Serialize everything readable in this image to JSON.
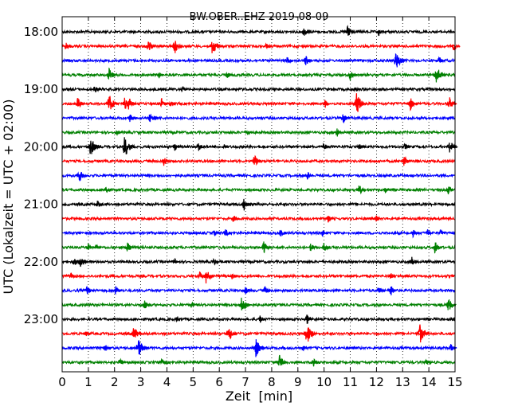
{
  "chart_data": {
    "type": "line",
    "title": "BW.OBER..EHZ 2019-08-09",
    "xlabel": "Zeit  [min]",
    "ylabel": "UTC (Lokalzeit = UTC + 02:00)",
    "xlim": [
      0,
      15
    ],
    "x_ticks": [
      "0",
      "1",
      "2",
      "3",
      "4",
      "5",
      "6",
      "7",
      "8",
      "9",
      "10",
      "11",
      "12",
      "13",
      "14",
      "15"
    ],
    "y_ticks": [
      "18:00",
      "19:00",
      "20:00",
      "21:00",
      "22:00",
      "23:00"
    ],
    "grid": "vertical dotted",
    "series_colors": [
      "#000000",
      "#ff0000",
      "#0000ff",
      "#008000"
    ],
    "traces": [
      {
        "start": "18:00",
        "color": "#000000",
        "events": [
          [
            9.25,
            0.6
          ],
          [
            10.9,
            0.6
          ],
          [
            12.1,
            0.4
          ]
        ]
      },
      {
        "start": "18:15",
        "color": "#ff0000",
        "events": [
          [
            0.15,
            0.4
          ],
          [
            3.3,
            0.6
          ],
          [
            4.3,
            0.7
          ],
          [
            5.75,
            0.9
          ],
          [
            7.8,
            0.3
          ],
          [
            14.95,
            0.5
          ]
        ]
      },
      {
        "start": "18:30",
        "color": "#0000ff",
        "events": [
          [
            8.6,
            0.4
          ],
          [
            9.3,
            0.5
          ],
          [
            12.75,
            0.9
          ],
          [
            14.4,
            0.4
          ]
        ]
      },
      {
        "start": "18:45",
        "color": "#008000",
        "events": [
          [
            1.8,
            0.7
          ],
          [
            3.7,
            0.3
          ],
          [
            6.3,
            0.4
          ],
          [
            11.0,
            0.5
          ],
          [
            14.3,
            0.9
          ]
        ]
      },
      {
        "start": "19:00",
        "color": "#000000",
        "events": [
          [
            1.25,
            0.4
          ],
          [
            4.6,
            0.3
          ],
          [
            11.2,
            0.3
          ]
        ]
      },
      {
        "start": "19:15",
        "color": "#ff0000",
        "events": [
          [
            0.6,
            0.6
          ],
          [
            1.8,
            0.9
          ],
          [
            2.4,
            0.7
          ],
          [
            2.55,
            0.6
          ],
          [
            3.8,
            0.5
          ],
          [
            4.15,
            0.3
          ],
          [
            10.05,
            0.4
          ],
          [
            11.25,
            1.0
          ],
          [
            13.3,
            0.6
          ],
          [
            14.8,
            0.6
          ]
        ]
      },
      {
        "start": "19:30",
        "color": "#0000ff",
        "events": [
          [
            2.6,
            0.4
          ],
          [
            3.35,
            0.5
          ],
          [
            3.5,
            0.3
          ],
          [
            10.75,
            0.5
          ]
        ]
      },
      {
        "start": "19:45",
        "color": "#008000",
        "events": [
          [
            2.1,
            0.2
          ],
          [
            7.1,
            0.3
          ],
          [
            10.5,
            0.4
          ]
        ]
      },
      {
        "start": "20:00",
        "color": "#000000",
        "events": [
          [
            1.1,
            0.9
          ],
          [
            2.4,
            1.0
          ],
          [
            4.3,
            0.4
          ],
          [
            5.2,
            0.5
          ],
          [
            6.2,
            0.3
          ],
          [
            10.0,
            0.4
          ],
          [
            11.35,
            0.3
          ],
          [
            13.1,
            0.4
          ],
          [
            14.8,
            0.7
          ]
        ]
      },
      {
        "start": "20:15",
        "color": "#ff0000",
        "events": [
          [
            3.9,
            0.5
          ],
          [
            7.35,
            0.6
          ],
          [
            13.05,
            0.6
          ]
        ]
      },
      {
        "start": "20:30",
        "color": "#0000ff",
        "events": [
          [
            0.65,
            0.7
          ],
          [
            9.35,
            0.5
          ]
        ]
      },
      {
        "start": "20:45",
        "color": "#008000",
        "events": [
          [
            1.65,
            0.4
          ],
          [
            11.35,
            0.5
          ],
          [
            12.35,
            0.3
          ],
          [
            14.75,
            0.4
          ]
        ]
      },
      {
        "start": "21:00",
        "color": "#000000",
        "events": [
          [
            1.35,
            0.4
          ],
          [
            6.95,
            0.6
          ]
        ]
      },
      {
        "start": "21:15",
        "color": "#ff0000",
        "events": [
          [
            6.55,
            0.4
          ],
          [
            10.15,
            0.4
          ],
          [
            12.0,
            0.3
          ]
        ]
      },
      {
        "start": "21:30",
        "color": "#0000ff",
        "events": [
          [
            5.8,
            0.4
          ],
          [
            6.25,
            0.4
          ],
          [
            8.35,
            0.4
          ],
          [
            9.95,
            0.3
          ],
          [
            13.4,
            0.4
          ],
          [
            13.95,
            0.4
          ],
          [
            14.45,
            0.4
          ]
        ]
      },
      {
        "start": "21:45",
        "color": "#008000",
        "events": [
          [
            1.0,
            0.4
          ],
          [
            1.3,
            0.3
          ],
          [
            2.5,
            0.5
          ],
          [
            7.7,
            0.6
          ],
          [
            9.5,
            0.4
          ],
          [
            10.0,
            0.5
          ],
          [
            14.25,
            0.6
          ]
        ]
      },
      {
        "start": "22:00",
        "color": "#000000",
        "events": [
          [
            0.45,
            0.5
          ],
          [
            0.7,
            0.6
          ],
          [
            4.3,
            0.3
          ],
          [
            5.8,
            0.3
          ],
          [
            13.35,
            0.5
          ]
        ]
      },
      {
        "start": "22:15",
        "color": "#ff0000",
        "events": [
          [
            0.35,
            0.3
          ],
          [
            5.25,
            0.5
          ],
          [
            5.5,
            0.7
          ],
          [
            6.5,
            0.3
          ],
          [
            12.55,
            0.3
          ]
        ]
      },
      {
        "start": "22:30",
        "color": "#0000ff",
        "events": [
          [
            0.95,
            0.5
          ],
          [
            2.05,
            0.4
          ],
          [
            7.0,
            0.5
          ],
          [
            7.75,
            0.4
          ],
          [
            12.1,
            0.5
          ],
          [
            12.55,
            0.5
          ]
        ]
      },
      {
        "start": "22:45",
        "color": "#008000",
        "events": [
          [
            3.15,
            0.5
          ],
          [
            4.95,
            0.3
          ],
          [
            6.85,
            0.7
          ],
          [
            7.0,
            0.5
          ],
          [
            14.75,
            0.7
          ]
        ]
      },
      {
        "start": "23:00",
        "color": "#000000",
        "events": [
          [
            4.4,
            0.3
          ],
          [
            7.55,
            0.4
          ],
          [
            9.35,
            0.5
          ]
        ]
      },
      {
        "start": "23:15",
        "color": "#ff0000",
        "events": [
          [
            0.9,
            0.3
          ],
          [
            2.75,
            0.7
          ],
          [
            6.35,
            0.8
          ],
          [
            9.35,
            1.0
          ],
          [
            13.65,
            1.0
          ]
        ]
      },
      {
        "start": "23:30",
        "color": "#0000ff",
        "events": [
          [
            1.65,
            0.4
          ],
          [
            2.9,
            1.0
          ],
          [
            7.4,
            0.9
          ],
          [
            9.2,
            0.3
          ],
          [
            14.85,
            0.4
          ]
        ]
      },
      {
        "start": "23:45",
        "color": "#008000",
        "events": [
          [
            2.2,
            0.4
          ],
          [
            3.8,
            0.4
          ],
          [
            8.3,
            0.7
          ],
          [
            9.6,
            0.5
          ],
          [
            13.9,
            0.4
          ]
        ]
      }
    ]
  }
}
